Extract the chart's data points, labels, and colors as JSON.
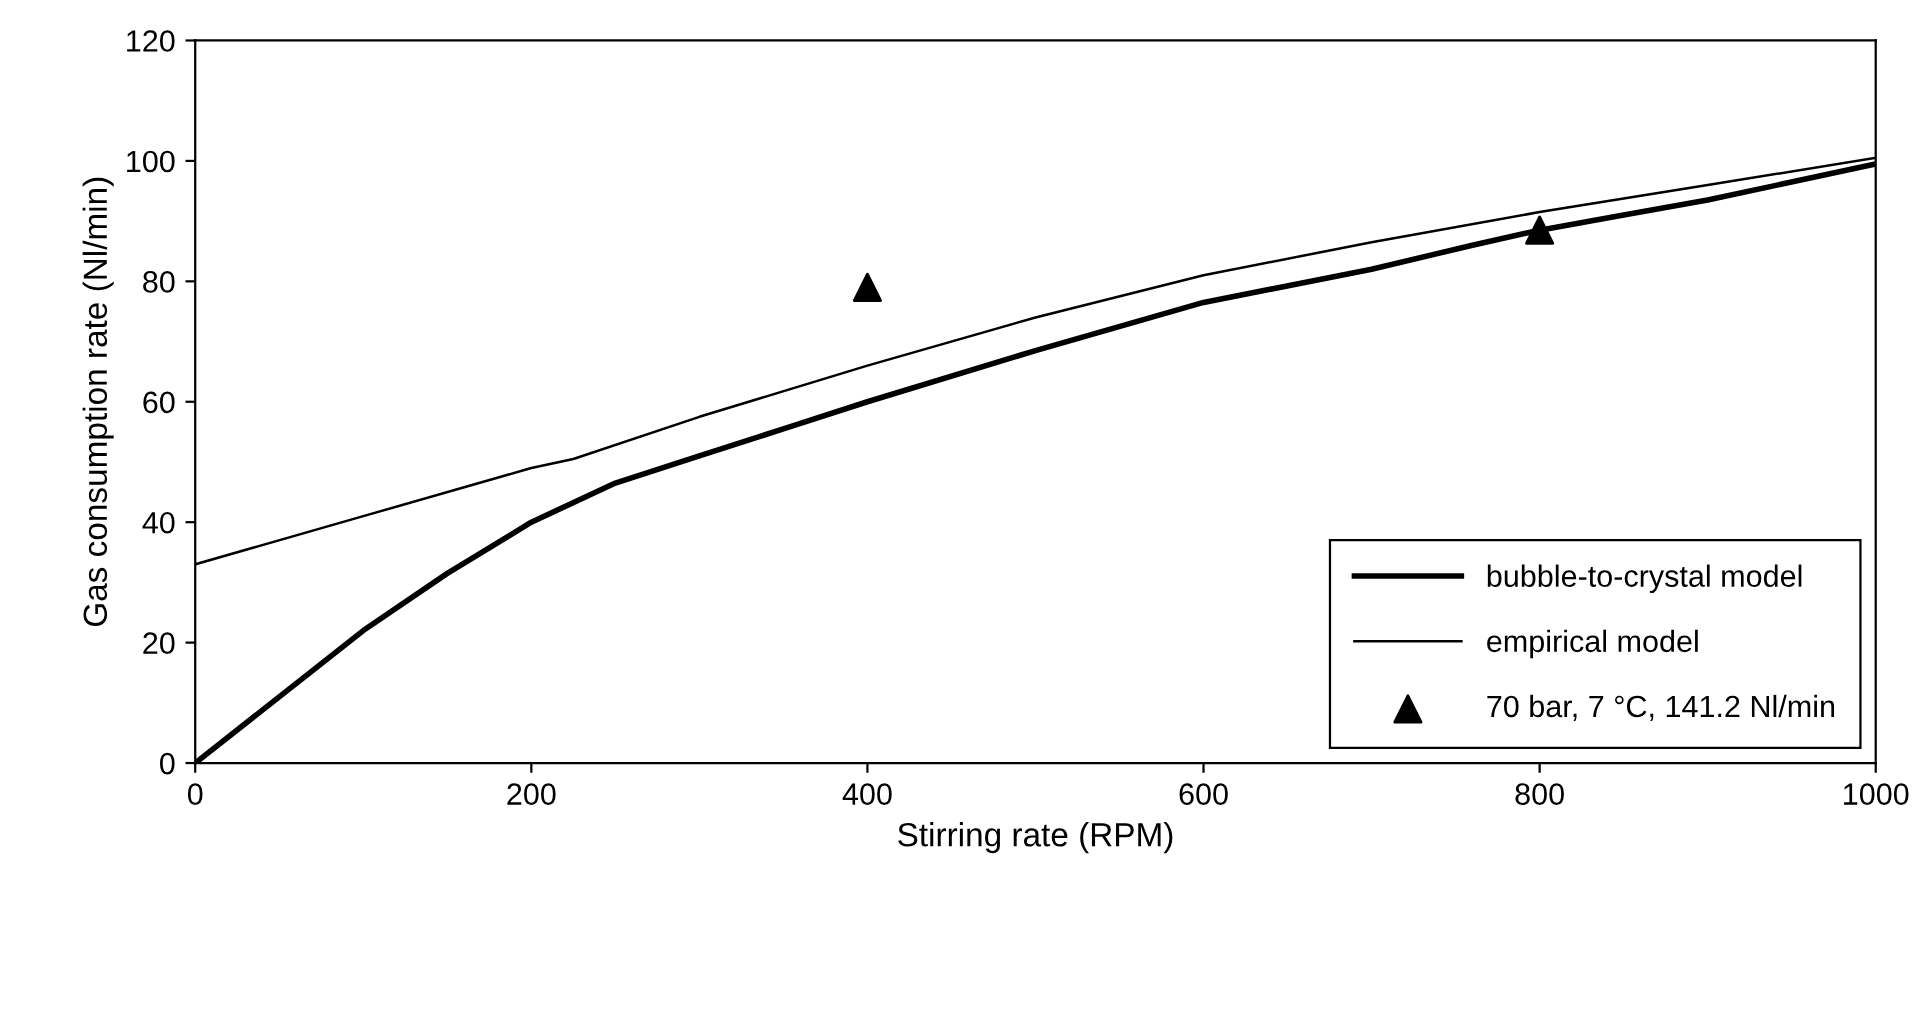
{
  "chart_data": {
    "type": "line",
    "xlabel": "Stirring rate (RPM)",
    "ylabel": "Gas consumption rate (Nl/min)",
    "xlim": [
      0,
      1000
    ],
    "xticks": [
      0,
      200,
      400,
      600,
      800,
      1000
    ],
    "ylim": [
      0,
      120
    ],
    "yticks": [
      0,
      20,
      40,
      60,
      80,
      100,
      120
    ],
    "grid": false,
    "legend": "bottom right",
    "series": [
      {
        "name": "bubble-to-crystal model",
        "color": "#000000",
        "marker": "none",
        "x": [
          0,
          100,
          150,
          200,
          250,
          300,
          350,
          400,
          500,
          600,
          700,
          760,
          800,
          850,
          900,
          1000
        ],
        "values": [
          0,
          22,
          31.5,
          40,
          46.5,
          51,
          55.5,
          60,
          68.5,
          76.5,
          82,
          86,
          88.5,
          91,
          93.5,
          99.5
        ]
      },
      {
        "name": "empirical model",
        "color": "#000000",
        "marker": "none",
        "x": [
          0,
          100,
          200,
          225,
          300,
          400,
          500,
          600,
          700,
          800,
          900,
          1000
        ],
        "values": [
          33,
          41,
          49,
          50.5,
          57.5,
          66,
          74,
          81,
          86.5,
          91.5,
          96,
          100.5
        ]
      },
      {
        "name": "70 bar, 7 °C, 141.2 Nl/min",
        "color": "#000000",
        "type": "scatter",
        "marker": "triangle",
        "x": [
          400,
          800
        ],
        "values": [
          79,
          88.5
        ]
      }
    ]
  }
}
